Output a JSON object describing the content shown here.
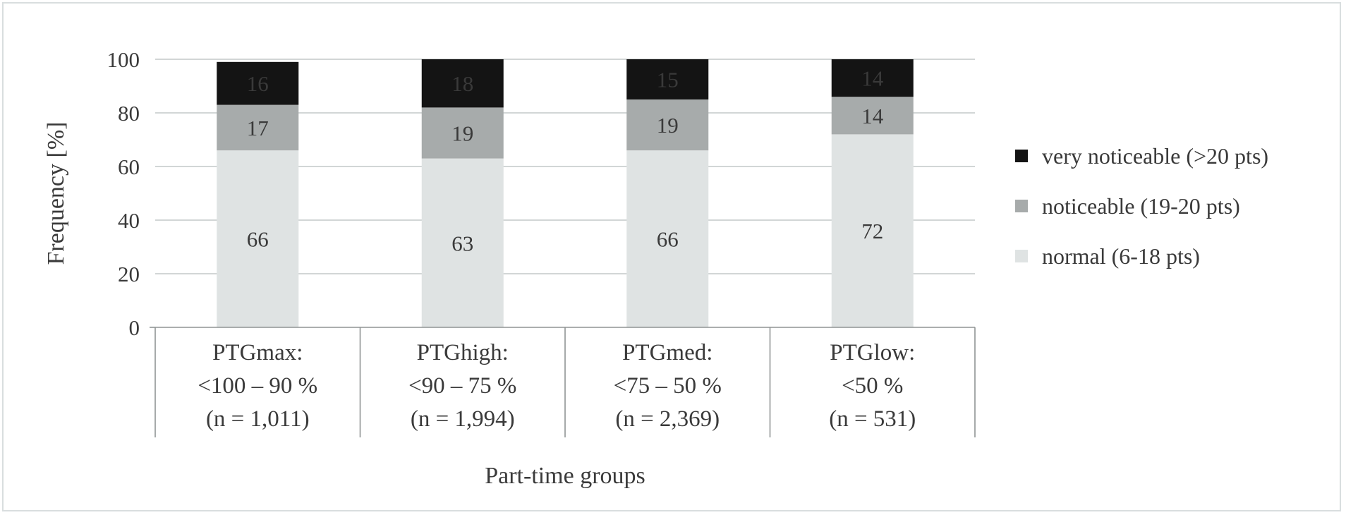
{
  "chart_data": {
    "type": "bar",
    "stacked": true,
    "categories": [
      [
        "PTGmax:",
        "<100 – 90 %",
        "(n = 1,011)"
      ],
      [
        "PTGhigh:",
        "<90 – 75 %",
        "(n = 1,994)"
      ],
      [
        "PTGmed:",
        "<75 – 50 %",
        "(n = 2,369)"
      ],
      [
        "PTGlow:",
        "<50 %",
        "(n = 531)"
      ]
    ],
    "series": [
      {
        "name": "normal (6-18 pts)",
        "values": [
          66,
          63,
          66,
          72
        ],
        "color": "#dfe3e3"
      },
      {
        "name": "noticeable (19-20 pts)",
        "values": [
          17,
          19,
          19,
          14
        ],
        "color": "#a7abab"
      },
      {
        "name": "very noticeable (>20 pts)",
        "values": [
          16,
          18,
          15,
          14
        ],
        "color": "#141414"
      }
    ],
    "xlabel": "Part-time groups",
    "ylabel": "Frequency [%]",
    "ylim": [
      0,
      100
    ],
    "yticks": [
      0,
      20,
      40,
      60,
      80,
      100
    ],
    "grid": true,
    "legend_position": "right"
  }
}
